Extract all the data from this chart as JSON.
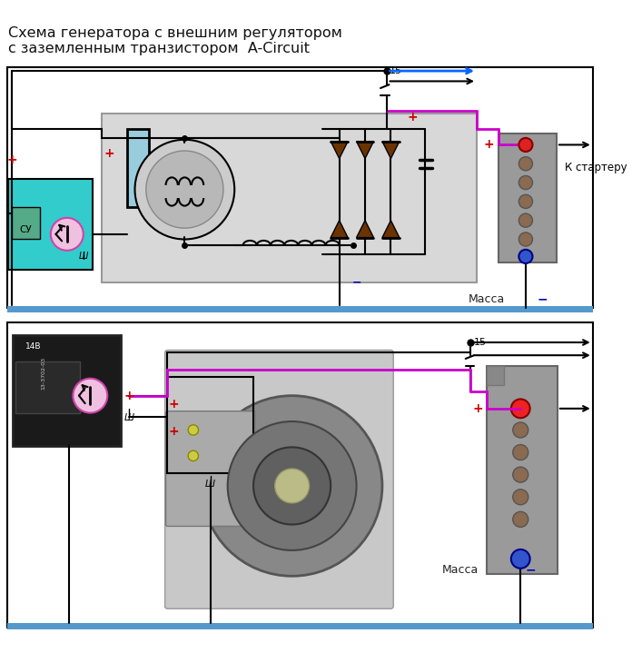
{
  "title_line1": "Схема генератора с внешним регулятором",
  "title_line2": "с заземленным транзистором  A-Circuit",
  "bg_color": "#ffffff",
  "wire_black": "#000000",
  "wire_magenta": "#cc00cc",
  "wire_blue": "#0066ff",
  "plus_color": "#cc0000",
  "minus_color": "#0000bb",
  "diode_color": "#6b3300",
  "bottom_bar_color": "#5599cc",
  "label_massa": "Масса",
  "label_k_starter": "К стартеру",
  "label_15": "15",
  "label_sh": "Ш",
  "label_cy": "СУ"
}
